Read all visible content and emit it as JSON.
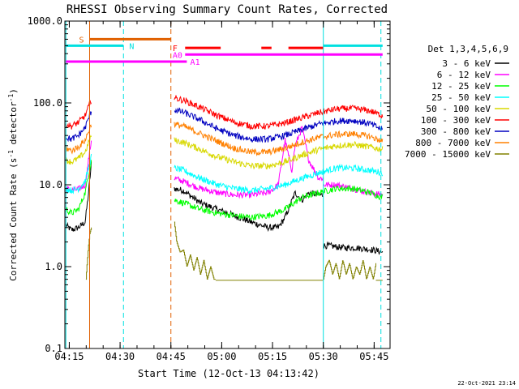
{
  "chart_data": {
    "type": "line",
    "title": "RHESSI Observing Summary Count Rates, Corrected",
    "xlabel": "Start Time (12-Oct-13 04:13:42)",
    "ylabel_main": "Corrected Count Rate (s",
    "ylabel_exp1": "-1",
    "ylabel_mid": " detector",
    "ylabel_exp2": "-1",
    "ylabel_end": ")",
    "y_scale": "log",
    "ylim": [
      0.1,
      1000
    ],
    "xlim_minutes": [
      0,
      96
    ],
    "x_ticks": [
      {
        "label": "04:15",
        "t": 1.3
      },
      {
        "label": "04:30",
        "t": 16.3
      },
      {
        "label": "04:45",
        "t": 31.3
      },
      {
        "label": "05:00",
        "t": 46.3
      },
      {
        "label": "05:15",
        "t": 61.3
      },
      {
        "label": "05:30",
        "t": 76.3
      },
      {
        "label": "05:45",
        "t": 91.3
      }
    ],
    "y_ticks": [
      {
        "label": "1000.0",
        "v": 1000
      },
      {
        "label": "100.0",
        "v": 100
      },
      {
        "label": "10.0",
        "v": 10
      },
      {
        "label": "1.0",
        "v": 1
      },
      {
        "label": "0.1",
        "v": 0.1
      }
    ],
    "legend_title": "Det 1,3,4,5,6,9",
    "legend_position": "right",
    "series": [
      {
        "name": "3 - 6 keV",
        "color": "#000000",
        "segments": [
          {
            "t": [
              0.3,
              2,
              4,
              6,
              7,
              7.8
            ],
            "v": [
              3.2,
              2.8,
              3.0,
              3.5,
              8,
              18
            ]
          },
          {
            "t": [
              32.3,
              35,
              40,
              45,
              50,
              55,
              60,
              63,
              65,
              66,
              68,
              70,
              72,
              75,
              76.2
            ],
            "v": [
              9,
              8.5,
              6,
              5,
              4.2,
              3.5,
              3.0,
              3.0,
              4.0,
              5.0,
              8.0,
              6.5,
              8.0,
              7.5,
              7.5
            ]
          },
          {
            "t": [
              76.3,
              78,
              82,
              86,
              91,
              93.8
            ],
            "v": [
              1.8,
              1.8,
              1.7,
              1.7,
              1.6,
              1.5
            ]
          }
        ]
      },
      {
        "name": "6 - 12 keV",
        "color": "#ff00ff",
        "segments": [
          {
            "t": [
              0.3,
              2,
              4,
              6,
              7.8
            ],
            "v": [
              9,
              8.5,
              8.8,
              10,
              35
            ]
          },
          {
            "t": [
              32.3,
              35,
              40,
              45,
              50,
              55,
              60,
              63,
              65,
              67,
              68,
              70,
              72,
              75,
              76.2
            ],
            "v": [
              12,
              11,
              9,
              8,
              7.5,
              7.5,
              8,
              10,
              35,
              15,
              30,
              50,
              20,
              12,
              12
            ]
          },
          {
            "t": [
              76.3,
              80,
              85,
              90,
              93.8
            ],
            "v": [
              10,
              10,
              9,
              8,
              7.5
            ]
          }
        ]
      },
      {
        "name": "12 - 25 keV",
        "color": "#00ff00",
        "segments": [
          {
            "t": [
              0.3,
              2,
              4,
              6,
              7.8
            ],
            "v": [
              5,
              4.5,
              5,
              8,
              20
            ]
          },
          {
            "t": [
              32.3,
              35,
              40,
              45,
              50,
              55,
              60,
              65,
              70,
              75,
              80,
              85,
              90,
              93.8
            ],
            "v": [
              6.5,
              6,
              5,
              4.5,
              4.2,
              4.0,
              4.2,
              5,
              7,
              8,
              9,
              9,
              8,
              7
            ]
          }
        ]
      },
      {
        "name": "25 - 50 keV",
        "color": "#00ffff",
        "segments": [
          {
            "t": [
              0.3,
              2,
              4,
              6,
              7.8
            ],
            "v": [
              9,
              8.5,
              9,
              11,
              22
            ]
          },
          {
            "t": [
              32.3,
              35,
              40,
              45,
              50,
              55,
              60,
              65,
              70,
              75,
              80,
              85,
              90,
              93.8
            ],
            "v": [
              16,
              15,
              12,
              10,
              9,
              8.5,
              9,
              10,
              12,
              14,
              16,
              16,
              15,
              14
            ]
          }
        ]
      },
      {
        "name": "50 - 100 keV",
        "color": "#d8d800",
        "segments": [
          {
            "t": [
              0.3,
              2,
              4,
              6,
              7.8
            ],
            "v": [
              20,
              19,
              21,
              25,
              40
            ]
          },
          {
            "t": [
              32.3,
              35,
              40,
              45,
              50,
              55,
              60,
              65,
              70,
              75,
              80,
              85,
              90,
              93.8
            ],
            "v": [
              35,
              33,
              27,
              22,
              19,
              17,
              17,
              19,
              23,
              27,
              30,
              31,
              29,
              27
            ]
          }
        ]
      },
      {
        "name": "100 - 300 keV",
        "color": "#ff0000",
        "segments": [
          {
            "t": [
              0.3,
              2,
              4,
              6,
              7.8
            ],
            "v": [
              55,
              52,
              58,
              70,
              110
            ]
          },
          {
            "t": [
              32.3,
              35,
              40,
              45,
              50,
              55,
              60,
              65,
              70,
              75,
              80,
              85,
              90,
              93.8
            ],
            "v": [
              115,
              108,
              88,
              70,
              58,
              52,
              52,
              57,
              66,
              76,
              84,
              86,
              80,
              70
            ]
          }
        ]
      },
      {
        "name": "300 - 800 keV",
        "color": "#0000c0",
        "segments": [
          {
            "t": [
              0.3,
              2,
              4,
              6,
              7.8
            ],
            "v": [
              38,
              36,
              40,
              50,
              80
            ]
          },
          {
            "t": [
              32.3,
              35,
              40,
              45,
              50,
              55,
              60,
              65,
              70,
              75,
              80,
              85,
              90,
              93.8
            ],
            "v": [
              82,
              77,
              62,
              48,
              40,
              36,
              36,
              40,
              47,
              55,
              60,
              61,
              56,
              47
            ]
          }
        ]
      },
      {
        "name": "800 - 7000 keV",
        "color": "#ff8000",
        "segments": [
          {
            "t": [
              0.3,
              2,
              4,
              6,
              7.8
            ],
            "v": [
              28,
              26,
              29,
              35,
              55
            ]
          },
          {
            "t": [
              32.3,
              35,
              40,
              45,
              50,
              55,
              60,
              65,
              70,
              75,
              80,
              85,
              90,
              93.8
            ],
            "v": [
              55,
              52,
              42,
              34,
              28,
              25,
              25,
              28,
              33,
              38,
              41,
              42,
              39,
              34
            ]
          }
        ]
      },
      {
        "name": "7000 - 15000 keV",
        "color": "#808000",
        "segments": [
          {
            "t": [
              6.2,
              6.8,
              7.3,
              7.8
            ],
            "v": [
              0.7,
              1.5,
              2.5,
              3.0
            ]
          },
          {
            "t": [
              32.3,
              33,
              34,
              35,
              36,
              37,
              38,
              39,
              40,
              41,
              42,
              43,
              44,
              44.5
            ],
            "v": [
              3.5,
              2.0,
              1.5,
              1.6,
              1.0,
              1.4,
              0.9,
              1.3,
              0.8,
              1.2,
              0.7,
              1.0,
              0.7,
              0.7
            ]
          },
          {
            "t": [
              44.5,
              76.2
            ],
            "v": [
              0.68,
              0.68
            ]
          },
          {
            "t": [
              76.3,
              77,
              78,
              79,
              80,
              81,
              82,
              83,
              84,
              85,
              86,
              87,
              88,
              89,
              90,
              91,
              91.8
            ],
            "v": [
              0.7,
              1.0,
              1.2,
              0.8,
              1.1,
              0.7,
              1.2,
              0.8,
              1.1,
              0.7,
              1.0,
              0.8,
              1.2,
              0.7,
              1.0,
              0.7,
              1.1
            ]
          },
          {
            "t": [
              91.8,
              93.8
            ],
            "v": [
              0.68,
              0.68
            ]
          }
        ]
      }
    ],
    "vlines": [
      {
        "t": 0.3,
        "color": "#00e0e0",
        "style": "solid"
      },
      {
        "t": 7.3,
        "color": "#e06000",
        "style": "solid"
      },
      {
        "t": 17.3,
        "color": "#00e0e0",
        "style": "dashed"
      },
      {
        "t": 31.3,
        "color": "#e06000",
        "style": "dashed"
      },
      {
        "t": 76.3,
        "color": "#00e0e0",
        "style": "solid"
      },
      {
        "t": 93.3,
        "color": "#00e0e0",
        "style": "dashed"
      }
    ],
    "bars": [
      {
        "label": "S",
        "color": "#e06000",
        "segments": [
          [
            7.3,
            31.3
          ]
        ],
        "v": 600,
        "label_t": 4.2
      },
      {
        "label": "N",
        "color": "#00e0e0",
        "segments": [
          [
            0.3,
            17.3
          ],
          [
            76.3,
            93.8
          ]
        ],
        "v": 500,
        "label_t": 19.0
      },
      {
        "label": "F",
        "color": "#ff0000",
        "segments": [
          [
            35.5,
            46
          ],
          [
            58,
            61
          ],
          [
            66,
            76.2
          ]
        ],
        "v": 470,
        "label_t": 31.8
      },
      {
        "label": "A0",
        "color": "#ff00ff",
        "segments": [
          [
            35.5,
            93.8
          ]
        ],
        "v": 390,
        "label_t": 31.8
      },
      {
        "label": "A1",
        "color": "#ff00ff",
        "segments": [
          [
            0.3,
            36.0
          ]
        ],
        "v": 320,
        "label_t": 37.0
      }
    ],
    "footer_date": "22-Oct-2021 23:14"
  }
}
